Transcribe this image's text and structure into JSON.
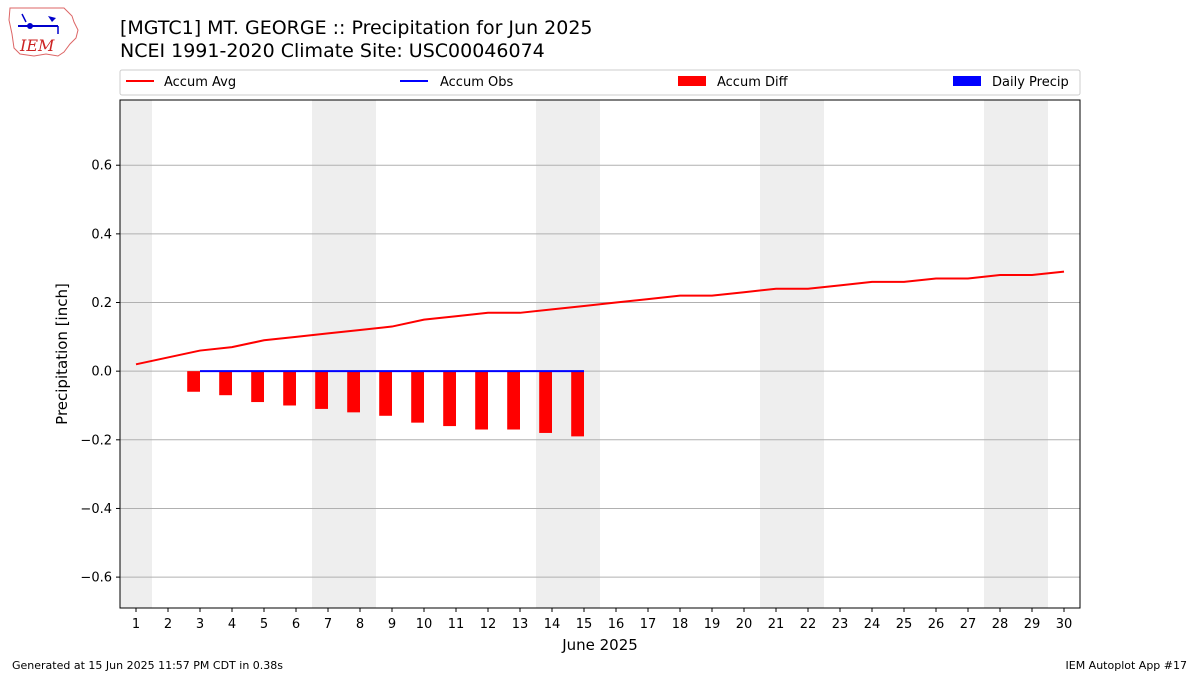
{
  "header": {
    "title_line1": "[MGTC1] MT. GEORGE :: Precipitation for Jun 2025",
    "title_line2": "NCEI 1991-2020 Climate Site: USC00046074",
    "logo_text": "IEM"
  },
  "footer": {
    "generated": "Generated at 15 Jun 2025 11:57 PM CDT in 0.38s",
    "app": "IEM Autoplot App #17"
  },
  "colors": {
    "accum_avg": "#ff0000",
    "accum_obs": "#0000ff",
    "accum_diff": "#ff0000",
    "daily_precip": "#0000ff",
    "weekend_shade": "#eeeeee",
    "grid": "#b0b0b0"
  },
  "chart_data": {
    "type": "line",
    "title": "[MGTC1] MT. GEORGE :: Precipitation for Jun 2025",
    "subtitle": "NCEI 1991-2020 Climate Site: USC00046074",
    "xlabel": "June 2025",
    "ylabel": "Precipitation [inch]",
    "xlim": [
      0.5,
      30.5
    ],
    "ylim": [
      -0.69,
      0.79
    ],
    "x_ticks": [
      1,
      2,
      3,
      4,
      5,
      6,
      7,
      8,
      9,
      10,
      11,
      12,
      13,
      14,
      15,
      16,
      17,
      18,
      19,
      20,
      21,
      22,
      23,
      24,
      25,
      26,
      27,
      28,
      29,
      30
    ],
    "y_ticks": [
      -0.6,
      -0.4,
      -0.2,
      0.0,
      0.2,
      0.4,
      0.6
    ],
    "y_tick_labels": [
      "−0.6",
      "−0.4",
      "−0.2",
      "0.0",
      "0.2",
      "0.4",
      "0.6"
    ],
    "grid": "y",
    "legend_placement": "top, above plot",
    "weekend_days": [
      1,
      7,
      8,
      14,
      15,
      21,
      22,
      28,
      29
    ],
    "series": [
      {
        "name": "Accum Avg",
        "type": "line",
        "color": "#ff0000",
        "x": [
          1,
          2,
          3,
          4,
          5,
          6,
          7,
          8,
          9,
          10,
          11,
          12,
          13,
          14,
          15,
          16,
          17,
          18,
          19,
          20,
          21,
          22,
          23,
          24,
          25,
          26,
          27,
          28,
          29,
          30
        ],
        "values": [
          0.02,
          0.04,
          0.06,
          0.07,
          0.09,
          0.1,
          0.11,
          0.12,
          0.13,
          0.15,
          0.16,
          0.17,
          0.17,
          0.18,
          0.19,
          0.2,
          0.21,
          0.22,
          0.22,
          0.23,
          0.24,
          0.24,
          0.25,
          0.26,
          0.26,
          0.27,
          0.27,
          0.28,
          0.28,
          0.29
        ]
      },
      {
        "name": "Accum Obs",
        "type": "line",
        "color": "#0000ff",
        "x": [
          3,
          4,
          5,
          6,
          7,
          8,
          9,
          10,
          11,
          12,
          13,
          14,
          15
        ],
        "values": [
          0,
          0,
          0,
          0,
          0,
          0,
          0,
          0,
          0,
          0,
          0,
          0,
          0
        ]
      },
      {
        "name": "Accum Diff",
        "type": "bar",
        "color": "#ff0000",
        "x": [
          3,
          4,
          5,
          6,
          7,
          8,
          9,
          10,
          11,
          12,
          13,
          14,
          15
        ],
        "values": [
          -0.06,
          -0.07,
          -0.09,
          -0.1,
          -0.11,
          -0.12,
          -0.13,
          -0.15,
          -0.16,
          -0.17,
          -0.17,
          -0.18,
          -0.19
        ]
      },
      {
        "name": "Daily Precip",
        "type": "bar",
        "color": "#0000ff",
        "x": [],
        "values": []
      }
    ]
  }
}
